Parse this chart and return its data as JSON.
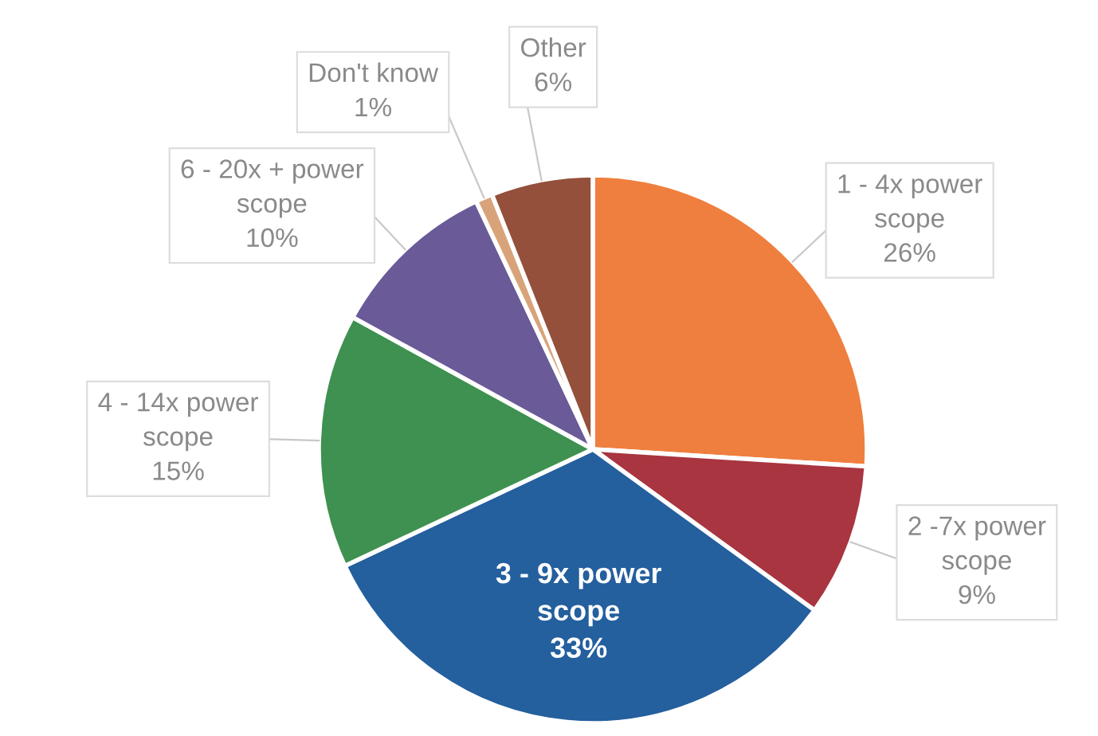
{
  "chart_data": {
    "type": "pie",
    "categories": [
      "1 - 4x power\nscope",
      "2 -7x power\nscope",
      "3 - 9x power\nscope",
      "4 - 14x power\nscope",
      "6 - 20x + power\nscope",
      "Don't know",
      "Other"
    ],
    "values": [
      26,
      9,
      33,
      15,
      10,
      1,
      6
    ],
    "value_labels": [
      "26%",
      "9%",
      "33%",
      "15%",
      "10%",
      "1%",
      "6%"
    ],
    "colors": [
      "#ef7f3e",
      "#a8353f",
      "#245f9e",
      "#3e9150",
      "#6a5a98",
      "#d9a37a",
      "#94503a"
    ],
    "data_labels": true,
    "legend": false
  }
}
